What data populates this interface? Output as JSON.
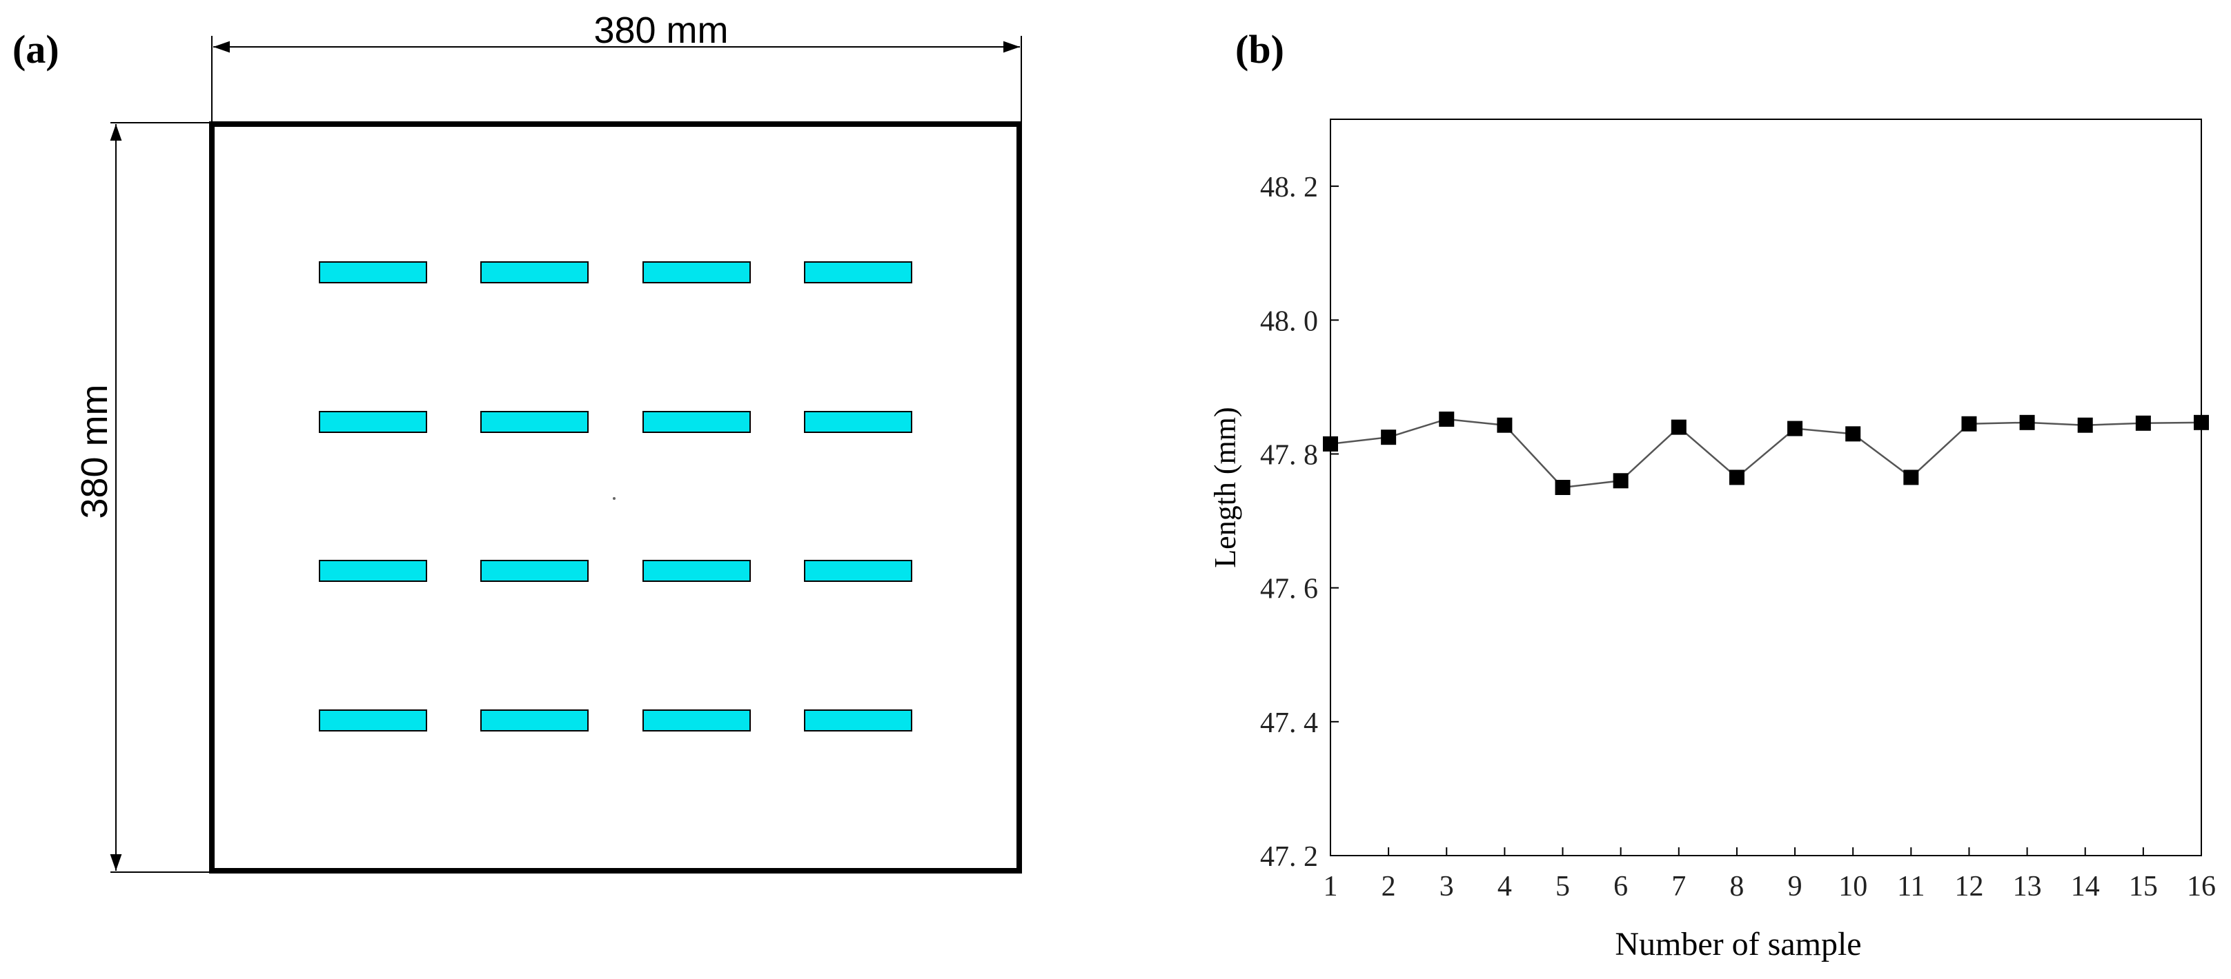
{
  "panel_a": {
    "label": "(a)",
    "width_dim": "380 mm",
    "height_dim": "380 mm",
    "sample_grid": {
      "rows": 4,
      "cols": 4
    },
    "sample_color": "#00e5ee",
    "border_color": "#000000"
  },
  "panel_b": {
    "label": "(b)"
  },
  "chart_data": {
    "type": "line",
    "title": "",
    "xlabel": "Number of sample",
    "ylabel": "Length (mm)",
    "x": [
      1,
      2,
      3,
      4,
      5,
      6,
      7,
      8,
      9,
      10,
      11,
      12,
      13,
      14,
      15,
      16
    ],
    "y": [
      47.815,
      47.825,
      47.852,
      47.843,
      47.75,
      47.76,
      47.84,
      47.765,
      47.838,
      47.83,
      47.765,
      47.845,
      47.847,
      47.843,
      47.846,
      47.847
    ],
    "xlim": [
      1,
      16
    ],
    "ylim": [
      47.2,
      48.3
    ],
    "xticks": [
      "1",
      "2",
      "3",
      "4",
      "5",
      "6",
      "7",
      "8",
      "9",
      "10",
      "11",
      "12",
      "13",
      "14",
      "15",
      "16"
    ],
    "yticks": [
      {
        "value": 47.2,
        "label": "47. 2"
      },
      {
        "value": 47.4,
        "label": "47. 4"
      },
      {
        "value": 47.6,
        "label": "47. 6"
      },
      {
        "value": 47.8,
        "label": "47. 8"
      },
      {
        "value": 48.0,
        "label": "48. 0"
      },
      {
        "value": 48.2,
        "label": "48. 2"
      }
    ],
    "marker": "square",
    "line_color": "#555555",
    "marker_color": "#000000",
    "grid": false
  }
}
